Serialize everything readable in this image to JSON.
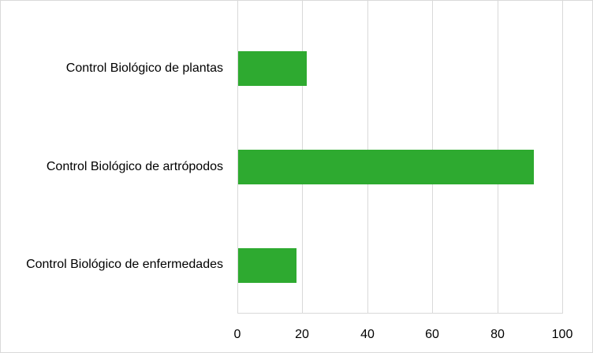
{
  "chart_data": {
    "type": "bar",
    "orientation": "horizontal",
    "title": "",
    "xlabel": "",
    "ylabel": "",
    "categories": [
      "Control Biológico de plantas",
      "Control Biológico de artrópodos",
      "Control Biológico de enfermedades"
    ],
    "values": [
      21,
      91,
      18
    ],
    "xlim": [
      0,
      100
    ],
    "x_ticks": [
      "0",
      "20",
      "40",
      "60",
      "80",
      "100"
    ],
    "grid": true,
    "legend": null,
    "bar_color": "#2eaa30"
  },
  "labels": {
    "cat0": "Control Biológico de plantas",
    "cat1": "Control Biológico de artrópodos",
    "cat2": "Control Biológico de enfermedades",
    "tick0": "0",
    "tick1": "20",
    "tick2": "40",
    "tick3": "60",
    "tick4": "80",
    "tick5": "100"
  }
}
